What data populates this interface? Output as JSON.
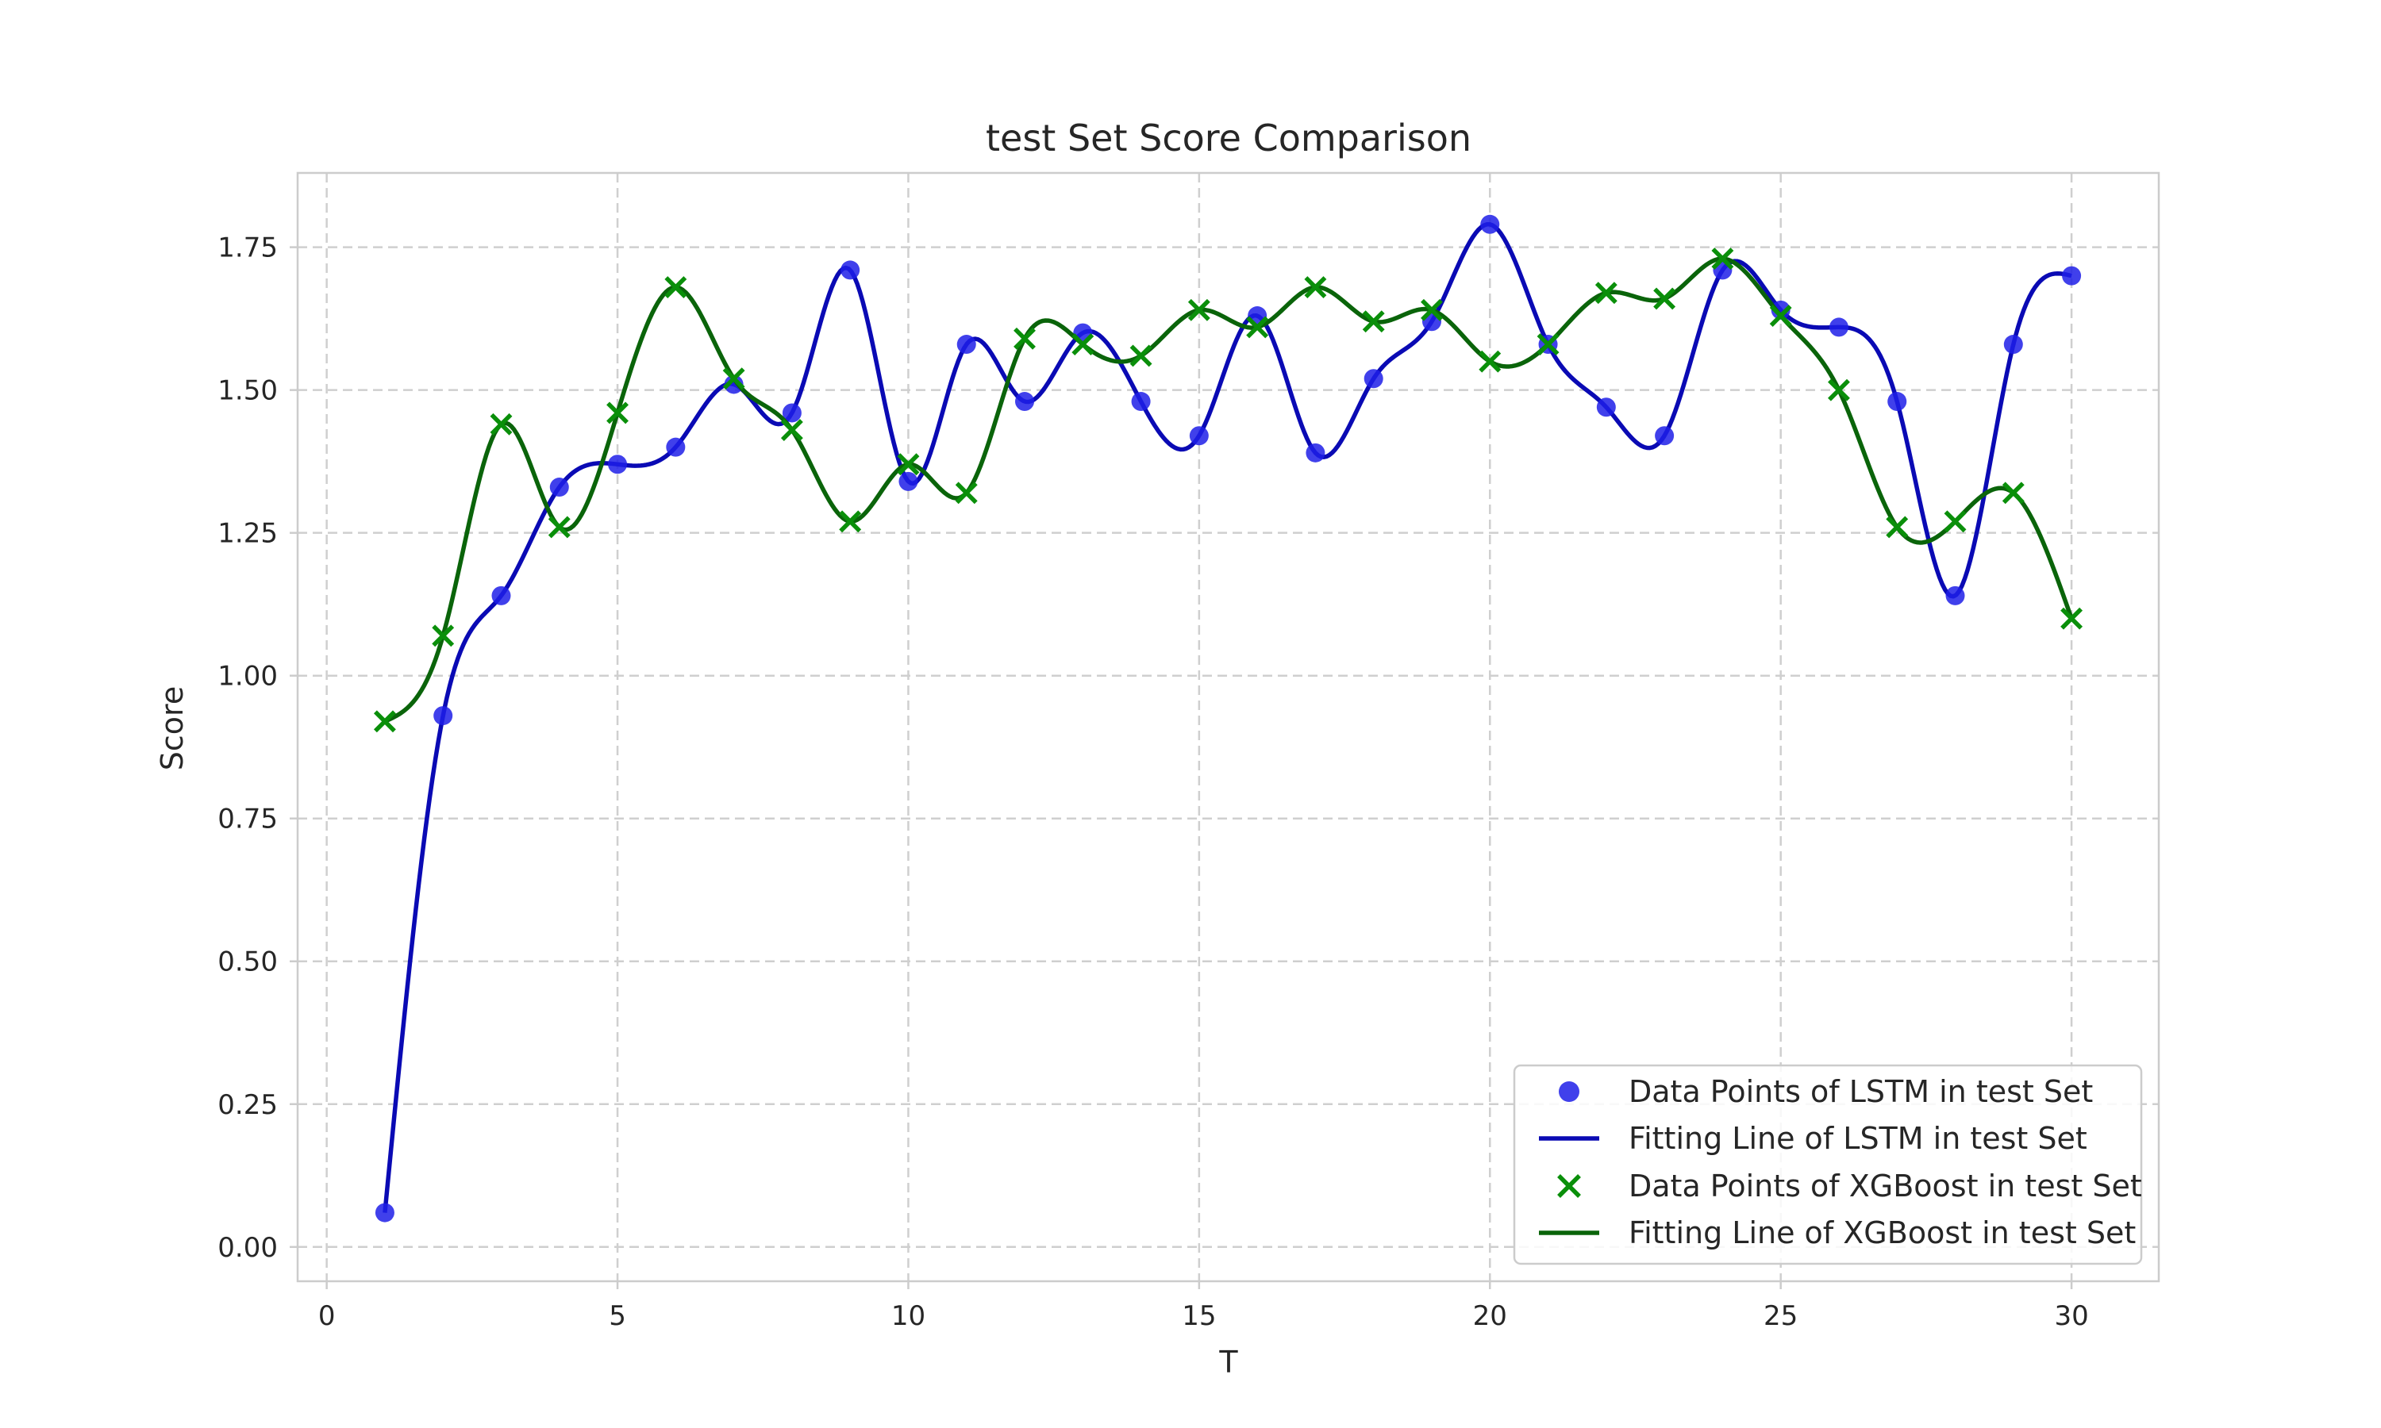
{
  "chart_data": {
    "type": "line",
    "title": "test Set Score Comparison",
    "xlabel": "T",
    "ylabel": "Score",
    "xlim": [
      -0.5,
      31.5
    ],
    "ylim": [
      -0.06,
      1.88
    ],
    "xticks": [
      0,
      5,
      10,
      15,
      20,
      25,
      30
    ],
    "yticks": [
      0.0,
      0.25,
      0.5,
      0.75,
      1.0,
      1.25,
      1.5,
      1.75
    ],
    "xtick_labels": [
      "0",
      "5",
      "10",
      "15",
      "20",
      "25",
      "30"
    ],
    "ytick_labels": [
      "0.00",
      "0.25",
      "0.50",
      "0.75",
      "1.00",
      "1.25",
      "1.50",
      "1.75"
    ],
    "grid": true,
    "legend_position": "lower-right",
    "x": [
      1,
      2,
      3,
      4,
      5,
      6,
      7,
      8,
      9,
      10,
      11,
      12,
      13,
      14,
      15,
      16,
      17,
      18,
      19,
      20,
      21,
      22,
      23,
      24,
      25,
      26,
      27,
      28,
      29,
      30
    ],
    "series": [
      {
        "name": "LSTM",
        "points_label": "Data Points of LSTM in test Set",
        "line_label": "Fitting Line of LSTM in test Set",
        "marker": "circle",
        "point_color": "#1f1fe8",
        "line_color": "#0a0ab4",
        "values": [
          0.06,
          0.93,
          1.14,
          1.33,
          1.37,
          1.4,
          1.51,
          1.46,
          1.71,
          1.34,
          1.58,
          1.48,
          1.6,
          1.48,
          1.42,
          1.63,
          1.39,
          1.52,
          1.62,
          1.79,
          1.58,
          1.47,
          1.42,
          1.71,
          1.64,
          1.61,
          1.48,
          1.14,
          1.58,
          1.7
        ]
      },
      {
        "name": "XGBoost",
        "points_label": "Data Points of XGBoost in test Set",
        "line_label": "Fitting Line of XGBoost in test Set",
        "marker": "x",
        "point_color": "#0a8f0a",
        "line_color": "#0a640a",
        "values": [
          0.92,
          1.07,
          1.44,
          1.26,
          1.46,
          1.68,
          1.52,
          1.43,
          1.27,
          1.37,
          1.32,
          1.59,
          1.58,
          1.56,
          1.64,
          1.61,
          1.68,
          1.62,
          1.64,
          1.55,
          1.58,
          1.67,
          1.66,
          1.73,
          1.63,
          1.5,
          1.26,
          1.27,
          1.32,
          1.1
        ]
      }
    ]
  }
}
